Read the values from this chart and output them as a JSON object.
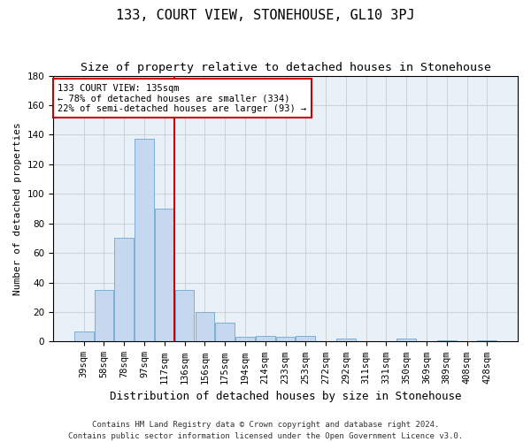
{
  "title": "133, COURT VIEW, STONEHOUSE, GL10 3PJ",
  "subtitle": "Size of property relative to detached houses in Stonehouse",
  "xlabel": "Distribution of detached houses by size in Stonehouse",
  "ylabel": "Number of detached properties",
  "categories": [
    "39sqm",
    "58sqm",
    "78sqm",
    "97sqm",
    "117sqm",
    "136sqm",
    "156sqm",
    "175sqm",
    "194sqm",
    "214sqm",
    "233sqm",
    "253sqm",
    "272sqm",
    "292sqm",
    "311sqm",
    "331sqm",
    "350sqm",
    "369sqm",
    "389sqm",
    "408sqm",
    "428sqm"
  ],
  "values": [
    7,
    35,
    70,
    137,
    90,
    35,
    20,
    13,
    3,
    4,
    3,
    4,
    0,
    2,
    0,
    0,
    2,
    0,
    1,
    0,
    1
  ],
  "bar_color": "#c5d8f0",
  "bar_edge_color": "#7bafd4",
  "vline_index": 5,
  "vline_color": "#cc0000",
  "annotation_text": "133 COURT VIEW: 135sqm\n← 78% of detached houses are smaller (334)\n22% of semi-detached houses are larger (93) →",
  "annotation_box_color": "white",
  "annotation_box_edge": "#cc0000",
  "ylim": [
    0,
    180
  ],
  "yticks": [
    0,
    20,
    40,
    60,
    80,
    100,
    120,
    140,
    160,
    180
  ],
  "grid_color": "#cccccc",
  "bg_color": "#e8f0f8",
  "footer": "Contains HM Land Registry data © Crown copyright and database right 2024.\nContains public sector information licensed under the Open Government Licence v3.0.",
  "title_fontsize": 11,
  "subtitle_fontsize": 9.5,
  "xlabel_fontsize": 9,
  "ylabel_fontsize": 8,
  "tick_fontsize": 7.5,
  "annotation_fontsize": 7.5,
  "footer_fontsize": 6.5
}
